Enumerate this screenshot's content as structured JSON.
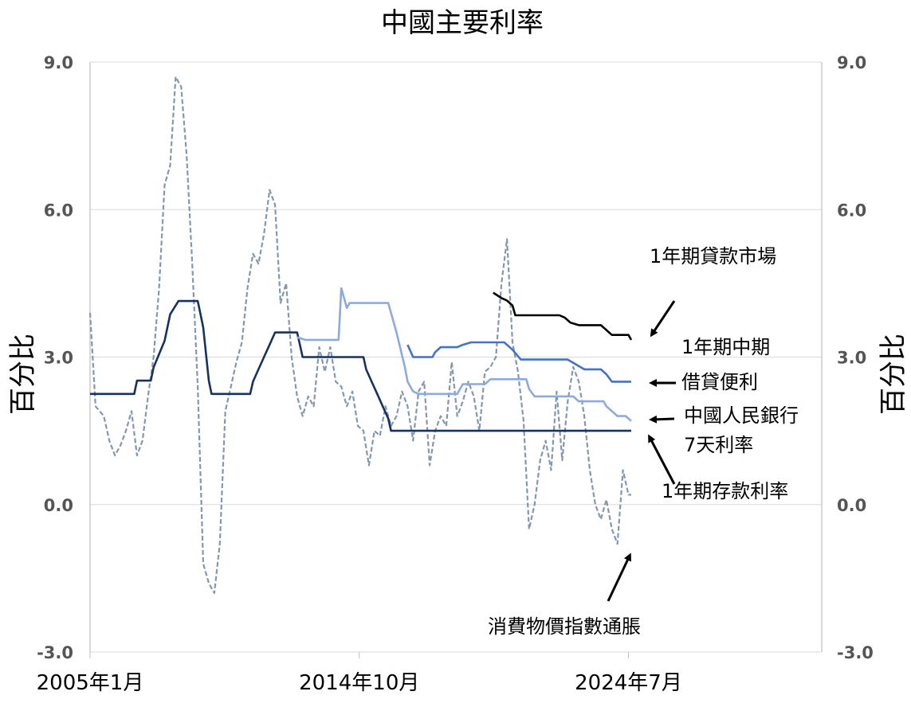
{
  "chart_data": {
    "type": "line",
    "title": "中國主要利率",
    "ylabel_left": "百分比",
    "ylabel_right": "百分比",
    "ylim": [
      -3.0,
      9.0
    ],
    "yticks": [
      "9.0",
      "6.0",
      "3.0",
      "0.0",
      "-3.0"
    ],
    "ytick_values": [
      9.0,
      6.0,
      3.0,
      0.0,
      -3.0
    ],
    "grid": true,
    "x_tick_labels": [
      "2005年1月",
      "2014年10月",
      "2024年7月"
    ],
    "x_tick_values": [
      2005.0,
      2014.75,
      2024.5
    ],
    "xlim": [
      2005.0,
      2031.5
    ],
    "series": [
      {
        "name": "消費物價指數通脹",
        "color": "#8497b0",
        "dash": true,
        "points": [
          [
            2005.0,
            3.9
          ],
          [
            2005.2,
            2.0
          ],
          [
            2005.5,
            1.8
          ],
          [
            2005.7,
            1.3
          ],
          [
            2005.9,
            1.0
          ],
          [
            2006.1,
            1.2
          ],
          [
            2006.3,
            1.5
          ],
          [
            2006.5,
            1.9
          ],
          [
            2006.7,
            1.0
          ],
          [
            2006.9,
            1.3
          ],
          [
            2007.1,
            2.2
          ],
          [
            2007.3,
            3.0
          ],
          [
            2007.5,
            4.4
          ],
          [
            2007.7,
            6.5
          ],
          [
            2007.9,
            6.9
          ],
          [
            2008.1,
            8.7
          ],
          [
            2008.3,
            8.5
          ],
          [
            2008.5,
            7.1
          ],
          [
            2008.7,
            4.9
          ],
          [
            2008.9,
            2.4
          ],
          [
            2009.1,
            -1.2
          ],
          [
            2009.3,
            -1.6
          ],
          [
            2009.5,
            -1.8
          ],
          [
            2009.7,
            -0.8
          ],
          [
            2009.9,
            1.9
          ],
          [
            2010.1,
            2.4
          ],
          [
            2010.3,
            2.9
          ],
          [
            2010.5,
            3.3
          ],
          [
            2010.7,
            4.4
          ],
          [
            2010.9,
            5.1
          ],
          [
            2011.1,
            4.9
          ],
          [
            2011.3,
            5.5
          ],
          [
            2011.5,
            6.4
          ],
          [
            2011.7,
            6.1
          ],
          [
            2011.9,
            4.1
          ],
          [
            2012.1,
            4.5
          ],
          [
            2012.3,
            3.0
          ],
          [
            2012.5,
            2.2
          ],
          [
            2012.7,
            1.8
          ],
          [
            2012.9,
            2.2
          ],
          [
            2013.1,
            2.0
          ],
          [
            2013.3,
            3.2
          ],
          [
            2013.5,
            2.7
          ],
          [
            2013.7,
            3.2
          ],
          [
            2013.9,
            2.5
          ],
          [
            2014.1,
            2.4
          ],
          [
            2014.3,
            2.0
          ],
          [
            2014.5,
            2.3
          ],
          [
            2014.7,
            1.6
          ],
          [
            2014.9,
            1.5
          ],
          [
            2015.1,
            0.8
          ],
          [
            2015.3,
            1.5
          ],
          [
            2015.5,
            1.4
          ],
          [
            2015.7,
            2.0
          ],
          [
            2015.9,
            1.6
          ],
          [
            2016.1,
            1.8
          ],
          [
            2016.3,
            2.3
          ],
          [
            2016.5,
            2.0
          ],
          [
            2016.7,
            1.3
          ],
          [
            2016.9,
            2.3
          ],
          [
            2017.1,
            2.5
          ],
          [
            2017.3,
            0.8
          ],
          [
            2017.5,
            1.5
          ],
          [
            2017.7,
            1.8
          ],
          [
            2017.9,
            1.6
          ],
          [
            2018.1,
            2.9
          ],
          [
            2018.3,
            1.8
          ],
          [
            2018.5,
            2.1
          ],
          [
            2018.7,
            2.5
          ],
          [
            2018.9,
            2.2
          ],
          [
            2019.1,
            1.5
          ],
          [
            2019.3,
            2.7
          ],
          [
            2019.5,
            2.8
          ],
          [
            2019.7,
            3.0
          ],
          [
            2019.9,
            4.5
          ],
          [
            2020.1,
            5.4
          ],
          [
            2020.3,
            3.3
          ],
          [
            2020.5,
            2.7
          ],
          [
            2020.7,
            1.7
          ],
          [
            2020.9,
            -0.5
          ],
          [
            2021.1,
            0.0
          ],
          [
            2021.3,
            0.9
          ],
          [
            2021.5,
            1.3
          ],
          [
            2021.7,
            0.7
          ],
          [
            2021.9,
            2.3
          ],
          [
            2022.1,
            0.9
          ],
          [
            2022.3,
            2.1
          ],
          [
            2022.5,
            2.8
          ],
          [
            2022.7,
            2.5
          ],
          [
            2022.9,
            1.8
          ],
          [
            2023.1,
            0.7
          ],
          [
            2023.3,
            0.0
          ],
          [
            2023.5,
            -0.3
          ],
          [
            2023.7,
            0.1
          ],
          [
            2023.9,
            -0.5
          ],
          [
            2024.1,
            -0.8
          ],
          [
            2024.3,
            0.7
          ],
          [
            2024.5,
            0.2
          ],
          [
            2024.6,
            0.2
          ]
        ]
      },
      {
        "name": "1年期存款利率",
        "color": "#17325c",
        "dash": false,
        "points": [
          [
            2005.0,
            2.25
          ],
          [
            2006.6,
            2.25
          ],
          [
            2006.7,
            2.52
          ],
          [
            2007.2,
            2.52
          ],
          [
            2007.3,
            2.79
          ],
          [
            2007.5,
            3.06
          ],
          [
            2007.7,
            3.33
          ],
          [
            2007.8,
            3.6
          ],
          [
            2007.9,
            3.87
          ],
          [
            2008.2,
            4.14
          ],
          [
            2008.9,
            4.14
          ],
          [
            2009.0,
            3.87
          ],
          [
            2009.1,
            3.6
          ],
          [
            2009.3,
            2.52
          ],
          [
            2009.4,
            2.25
          ],
          [
            2010.8,
            2.25
          ],
          [
            2010.9,
            2.5
          ],
          [
            2011.1,
            2.75
          ],
          [
            2011.3,
            3.0
          ],
          [
            2011.5,
            3.25
          ],
          [
            2011.7,
            3.5
          ],
          [
            2012.5,
            3.5
          ],
          [
            2012.6,
            3.25
          ],
          [
            2012.7,
            3.0
          ],
          [
            2014.9,
            3.0
          ],
          [
            2015.0,
            2.75
          ],
          [
            2015.2,
            2.5
          ],
          [
            2015.4,
            2.25
          ],
          [
            2015.6,
            2.0
          ],
          [
            2015.8,
            1.75
          ],
          [
            2015.9,
            1.5
          ],
          [
            2024.6,
            1.5
          ]
        ]
      },
      {
        "name": "中國人民銀行7天利率",
        "color": "#8eaadb",
        "dash": false,
        "points": [
          [
            2012.5,
            3.4
          ],
          [
            2012.8,
            3.35
          ],
          [
            2014.0,
            3.35
          ],
          [
            2014.1,
            4.4
          ],
          [
            2014.3,
            4.0
          ],
          [
            2014.4,
            4.1
          ],
          [
            2015.8,
            4.1
          ],
          [
            2016.1,
            3.5
          ],
          [
            2016.4,
            2.8
          ],
          [
            2016.5,
            2.5
          ],
          [
            2016.7,
            2.3
          ],
          [
            2016.9,
            2.25
          ],
          [
            2018.3,
            2.25
          ],
          [
            2018.5,
            2.45
          ],
          [
            2019.3,
            2.45
          ],
          [
            2019.5,
            2.55
          ],
          [
            2020.8,
            2.55
          ],
          [
            2020.9,
            2.35
          ],
          [
            2021.1,
            2.2
          ],
          [
            2022.5,
            2.2
          ],
          [
            2022.7,
            2.1
          ],
          [
            2023.6,
            2.1
          ],
          [
            2023.7,
            2.0
          ],
          [
            2023.9,
            1.9
          ],
          [
            2024.1,
            1.8
          ],
          [
            2024.4,
            1.8
          ],
          [
            2024.6,
            1.7
          ]
        ]
      },
      {
        "name": "借貸便利",
        "color": "#4472c4",
        "dash": false,
        "points": [
          [
            2016.5,
            3.25
          ],
          [
            2016.7,
            3.0
          ],
          [
            2017.4,
            3.0
          ],
          [
            2017.5,
            3.1
          ],
          [
            2017.7,
            3.2
          ],
          [
            2018.3,
            3.2
          ],
          [
            2018.5,
            3.25
          ],
          [
            2018.8,
            3.3
          ],
          [
            2020.0,
            3.3
          ],
          [
            2020.3,
            3.15
          ],
          [
            2020.6,
            2.95
          ],
          [
            2022.3,
            2.95
          ],
          [
            2022.6,
            2.85
          ],
          [
            2022.9,
            2.75
          ],
          [
            2023.5,
            2.75
          ],
          [
            2023.7,
            2.65
          ],
          [
            2023.9,
            2.5
          ],
          [
            2024.6,
            2.5
          ]
        ]
      },
      {
        "name": "1年期貸款市場",
        "color": "#000000",
        "dash": false,
        "points": [
          [
            2019.6,
            4.31
          ],
          [
            2019.9,
            4.2
          ],
          [
            2020.1,
            4.15
          ],
          [
            2020.3,
            4.05
          ],
          [
            2020.4,
            3.85
          ],
          [
            2022.0,
            3.85
          ],
          [
            2022.2,
            3.8
          ],
          [
            2022.4,
            3.7
          ],
          [
            2022.7,
            3.65
          ],
          [
            2023.5,
            3.65
          ],
          [
            2023.7,
            3.55
          ],
          [
            2023.9,
            3.45
          ],
          [
            2024.5,
            3.45
          ],
          [
            2024.6,
            3.35
          ]
        ]
      }
    ],
    "annotations": [
      {
        "text": "1年期貸款市場",
        "series": "1年期貸款市場"
      },
      {
        "text": "1年期中期",
        "series": "借貸便利"
      },
      {
        "text": "借貸便利",
        "series": "借貸便利"
      },
      {
        "text": "中國人民銀行",
        "series": "中國人民銀行7天利率"
      },
      {
        "text": "7天利率",
        "series": "中國人民銀行7天利率"
      },
      {
        "text": "1年期存款利率",
        "series": "1年期存款利率"
      },
      {
        "text": "消費物價指數通脹",
        "series": "消費物價指數通脹"
      }
    ]
  }
}
